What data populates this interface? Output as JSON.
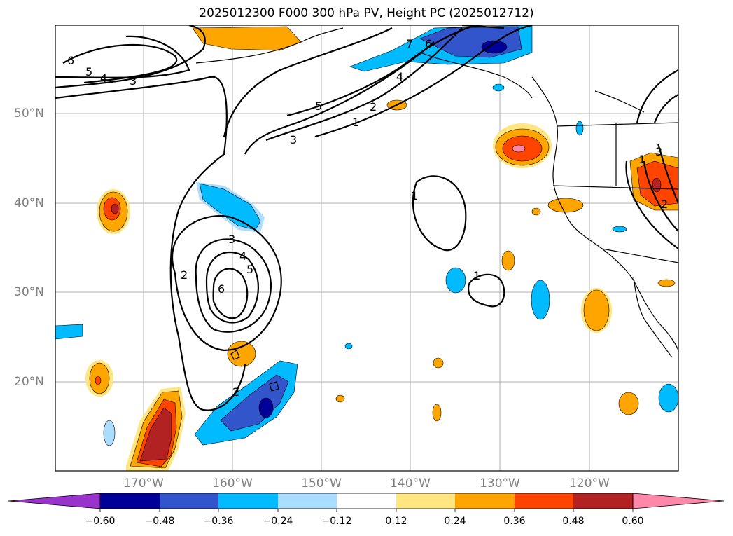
{
  "title": "2025012300 F000 300 hPa PV, Height PC (2025012712)",
  "lat_labels": [
    "50°N",
    "40°N",
    "30°N",
    "20°N"
  ],
  "lon_labels": [
    "170°W",
    "160°W",
    "150°W",
    "140°W",
    "130°W",
    "120°W"
  ],
  "colorbar": {
    "ticks": [
      "−0.60",
      "−0.48",
      "−0.36",
      "−0.24",
      "−0.12",
      "0.12",
      "0.24",
      "0.36",
      "0.48",
      "0.60"
    ],
    "colors": [
      "#9933cc",
      "#000099",
      "#3355cc",
      "#00bbff",
      "#aaddff",
      "#ffffff",
      "#ffe680",
      "#ffa500",
      "#ff4400",
      "#b22222",
      "#ff88aa"
    ]
  },
  "contour_labels": [
    "6",
    "5",
    "4",
    "3",
    "7",
    "6",
    "5",
    "4",
    "2",
    "1",
    "3",
    "1",
    "2",
    "3",
    "4",
    "5",
    "6",
    "1",
    "3",
    "2",
    "1",
    "2"
  ],
  "map_colors": {
    "grid": "#b0b0b0",
    "coast": "#000000",
    "contour": "#000000",
    "frame": "#000000"
  }
}
